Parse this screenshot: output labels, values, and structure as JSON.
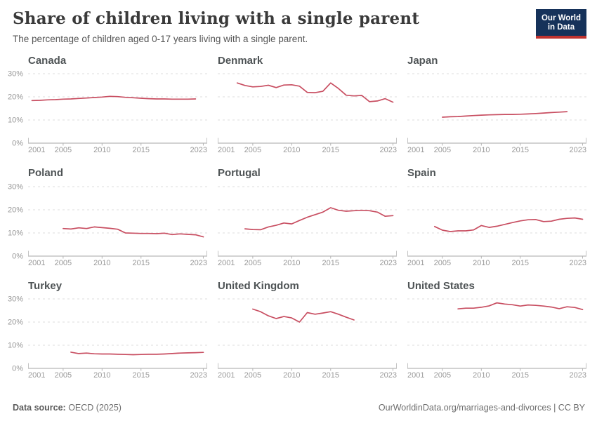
{
  "header": {
    "title": "Share of children living with a single parent",
    "subtitle": "The percentage of children aged 0-17 years living with a single parent.",
    "logo": {
      "line1": "Our World",
      "line2": "in Data"
    }
  },
  "footer": {
    "source_label": "Data source:",
    "source_value": " OECD (2025)",
    "link": "OurWorldinData.org/marriages-and-divorces",
    "separator": " | ",
    "license": "CC BY"
  },
  "colors": {
    "line": "#c84e61",
    "grid": "#dddddd",
    "axis": "#a6a6a6",
    "bracket": "#c4c4c4",
    "tick": "#b5b5b5",
    "tick_label": "#999999",
    "logo_bg": "#16325a",
    "logo_red": "#c0332f"
  },
  "chart_config": {
    "xlim": [
      2000.5,
      2023.5
    ],
    "ylim": [
      0,
      33
    ],
    "x_ticks": [
      2001,
      2005,
      2010,
      2015,
      2023
    ],
    "y_ticks": [
      0,
      10,
      20,
      30
    ],
    "y_tick_suffix": "%",
    "grid": "dashed"
  },
  "chart_data": [
    {
      "type": "line",
      "title": "Canada",
      "show_y_axis": true,
      "x": [
        2001,
        2002,
        2003,
        2004,
        2005,
        2006,
        2007,
        2008,
        2009,
        2010,
        2011,
        2012,
        2013,
        2014,
        2015,
        2016,
        2017,
        2018,
        2019,
        2020,
        2021,
        2022
      ],
      "values": [
        18.4,
        18.5,
        18.7,
        18.8,
        19.0,
        19.1,
        19.3,
        19.5,
        19.7,
        19.9,
        20.2,
        20.1,
        19.8,
        19.6,
        19.4,
        19.2,
        19.1,
        19.1,
        19.0,
        19.0,
        19.0,
        19.1
      ]
    },
    {
      "type": "line",
      "title": "Denmark",
      "show_y_axis": false,
      "x": [
        2003,
        2004,
        2005,
        2006,
        2007,
        2008,
        2009,
        2010,
        2011,
        2012,
        2013,
        2014,
        2015,
        2016,
        2017,
        2018,
        2019,
        2020,
        2021,
        2022,
        2023
      ],
      "values": [
        26.0,
        24.9,
        24.3,
        24.5,
        25.0,
        24.0,
        25.1,
        25.2,
        24.6,
        21.9,
        21.8,
        22.4,
        26.0,
        23.6,
        20.7,
        20.4,
        20.6,
        17.9,
        18.2,
        19.2,
        17.7
      ]
    },
    {
      "type": "line",
      "title": "Japan",
      "show_y_axis": false,
      "x": [
        2005,
        2006,
        2007,
        2008,
        2009,
        2010,
        2011,
        2012,
        2013,
        2014,
        2015,
        2016,
        2017,
        2018,
        2019,
        2020,
        2021
      ],
      "values": [
        11.2,
        11.4,
        11.5,
        11.7,
        11.9,
        12.1,
        12.2,
        12.3,
        12.4,
        12.4,
        12.5,
        12.6,
        12.8,
        13.0,
        13.2,
        13.4,
        13.6
      ]
    },
    {
      "type": "line",
      "title": "Poland",
      "show_y_axis": true,
      "x": [
        2005,
        2006,
        2007,
        2008,
        2009,
        2010,
        2011,
        2012,
        2013,
        2014,
        2015,
        2016,
        2017,
        2018,
        2019,
        2020,
        2021,
        2022,
        2023
      ],
      "values": [
        11.9,
        11.7,
        12.2,
        11.9,
        12.6,
        12.3,
        12.0,
        11.6,
        10.0,
        9.9,
        9.8,
        9.8,
        9.7,
        9.9,
        9.3,
        9.6,
        9.4,
        9.2,
        8.3
      ]
    },
    {
      "type": "line",
      "title": "Portugal",
      "show_y_axis": false,
      "x": [
        2004,
        2005,
        2006,
        2007,
        2008,
        2009,
        2010,
        2011,
        2012,
        2013,
        2014,
        2015,
        2016,
        2017,
        2018,
        2019,
        2020,
        2021,
        2022,
        2023
      ],
      "values": [
        11.8,
        11.5,
        11.4,
        12.6,
        13.3,
        14.3,
        13.9,
        15.4,
        16.8,
        17.9,
        19.0,
        20.9,
        19.8,
        19.4,
        19.6,
        19.8,
        19.6,
        19.0,
        17.2,
        17.5
      ]
    },
    {
      "type": "line",
      "title": "Spain",
      "show_y_axis": false,
      "x": [
        2004,
        2005,
        2006,
        2007,
        2008,
        2009,
        2010,
        2011,
        2012,
        2013,
        2014,
        2015,
        2016,
        2017,
        2018,
        2019,
        2020,
        2021,
        2022,
        2023
      ],
      "values": [
        12.8,
        11.2,
        10.6,
        10.9,
        10.9,
        11.3,
        13.2,
        12.4,
        12.9,
        13.7,
        14.5,
        15.2,
        15.7,
        15.8,
        14.9,
        15.1,
        15.9,
        16.3,
        16.5,
        15.9
      ]
    },
    {
      "type": "line",
      "title": "Turkey",
      "show_y_axis": true,
      "x": [
        2006,
        2007,
        2008,
        2009,
        2010,
        2011,
        2012,
        2013,
        2014,
        2015,
        2016,
        2017,
        2018,
        2019,
        2020,
        2021,
        2022,
        2023
      ],
      "values": [
        7.0,
        6.4,
        6.6,
        6.3,
        6.2,
        6.2,
        6.1,
        6.0,
        5.9,
        6.0,
        6.1,
        6.1,
        6.2,
        6.4,
        6.6,
        6.7,
        6.8,
        6.9
      ]
    },
    {
      "type": "line",
      "title": "United Kingdom",
      "show_y_axis": false,
      "x": [
        2005,
        2006,
        2007,
        2008,
        2009,
        2010,
        2011,
        2012,
        2013,
        2014,
        2015,
        2016,
        2017,
        2018
      ],
      "values": [
        25.6,
        24.5,
        22.7,
        21.5,
        22.4,
        21.8,
        20.0,
        24.1,
        23.4,
        23.9,
        24.5,
        23.4,
        22.1,
        20.9
      ]
    },
    {
      "type": "line",
      "title": "United States",
      "show_y_axis": false,
      "x": [
        2007,
        2008,
        2009,
        2010,
        2011,
        2012,
        2013,
        2014,
        2015,
        2016,
        2017,
        2018,
        2019,
        2020,
        2021,
        2022,
        2023
      ],
      "values": [
        25.7,
        26.0,
        26.0,
        26.4,
        27.0,
        28.3,
        27.8,
        27.5,
        26.9,
        27.4,
        27.2,
        26.9,
        26.5,
        25.8,
        26.6,
        26.3,
        25.4
      ]
    }
  ]
}
